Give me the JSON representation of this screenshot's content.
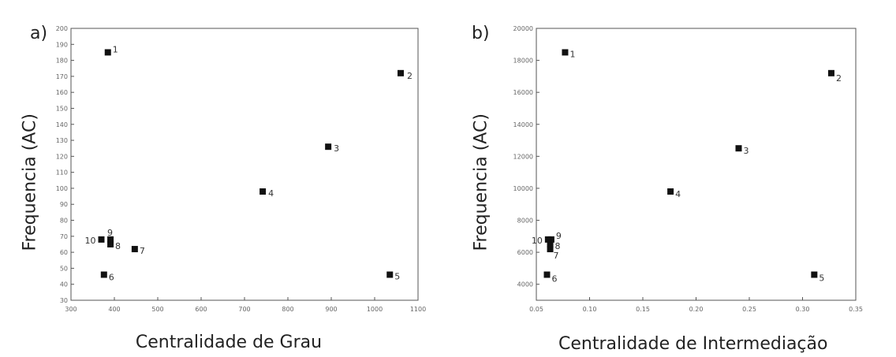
{
  "chart_data": [
    {
      "type": "scatter",
      "panel_label": "a)",
      "title": "",
      "xlabel": "Centralidade de Grau",
      "ylabel": "Frequencia (AC)",
      "xlim": [
        300,
        1100
      ],
      "ylim": [
        30,
        200
      ],
      "x_ticks": [
        "300",
        "400",
        "500",
        "600",
        "700",
        "800",
        "900",
        "1000",
        "1100"
      ],
      "y_ticks": [
        "30",
        "40",
        "50",
        "60",
        "70",
        "80",
        "90",
        "100",
        "110",
        "120",
        "130",
        "140",
        "150",
        "160",
        "170",
        "180",
        "190",
        "200"
      ],
      "grid": false,
      "legend": "none",
      "points": [
        {
          "label": "1",
          "x": 385,
          "y": 185
        },
        {
          "label": "2",
          "x": 1060,
          "y": 172
        },
        {
          "label": "3",
          "x": 893,
          "y": 126
        },
        {
          "label": "4",
          "x": 742,
          "y": 98
        },
        {
          "label": "5",
          "x": 1035,
          "y": 46
        },
        {
          "label": "6",
          "x": 376,
          "y": 46
        },
        {
          "label": "7",
          "x": 447,
          "y": 62
        },
        {
          "label": "8",
          "x": 391,
          "y": 65
        },
        {
          "label": "9",
          "x": 391,
          "y": 68
        },
        {
          "label": "10",
          "x": 370,
          "y": 68
        }
      ]
    },
    {
      "type": "scatter",
      "panel_label": "b)",
      "title": "",
      "xlabel": "Centralidade de Intermediação",
      "ylabel": "Frequencia (AC)",
      "xlim": [
        0.05,
        0.35
      ],
      "ylim": [
        3000,
        20000
      ],
      "x_ticks": [
        "0.05",
        "0.10",
        "0.15",
        "0.20",
        "0.25",
        "0.30",
        "0.35"
      ],
      "y_ticks": [
        "4000",
        "6000",
        "8000",
        "10000",
        "12000",
        "14000",
        "16000",
        "18000",
        "20000"
      ],
      "grid": false,
      "legend": "none",
      "points": [
        {
          "label": "1",
          "x": 0.077,
          "y": 18500
        },
        {
          "label": "2",
          "x": 0.327,
          "y": 17200
        },
        {
          "label": "3",
          "x": 0.24,
          "y": 12500
        },
        {
          "label": "4",
          "x": 0.176,
          "y": 9800
        },
        {
          "label": "5",
          "x": 0.311,
          "y": 4600
        },
        {
          "label": "6",
          "x": 0.06,
          "y": 4600
        },
        {
          "label": "7",
          "x": 0.063,
          "y": 6200
        },
        {
          "label": "8",
          "x": 0.063,
          "y": 6500
        },
        {
          "label": "9",
          "x": 0.064,
          "y": 6800
        },
        {
          "label": "10",
          "x": 0.061,
          "y": 6800
        }
      ]
    }
  ]
}
